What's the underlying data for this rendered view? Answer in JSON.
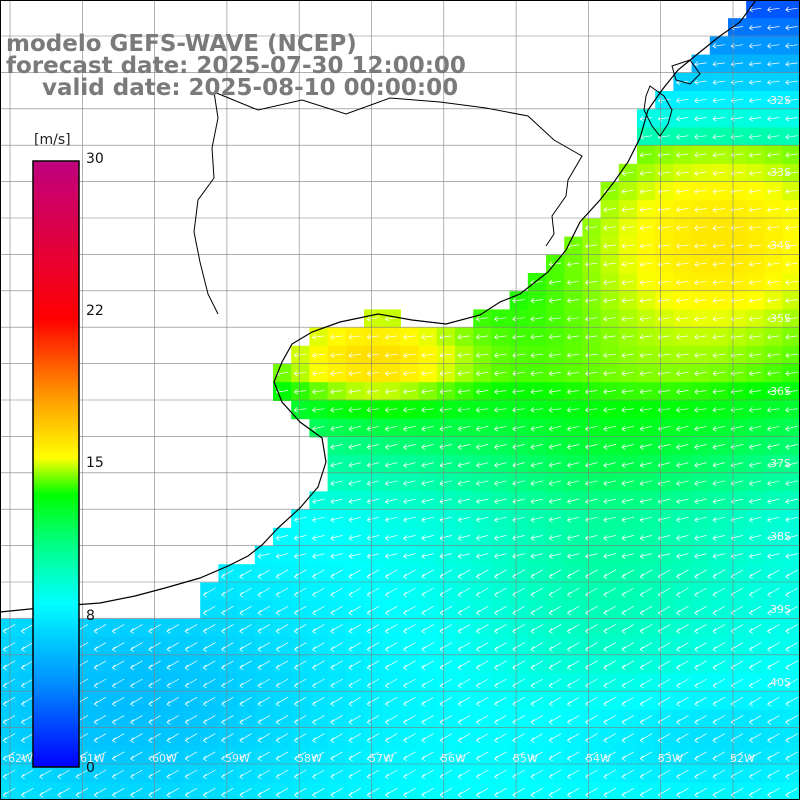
{
  "header": {
    "model": "modelo GEFS-WAVE (NCEP)",
    "forecast": "forecast date: 2025-07-30 12:00:00",
    "valid": "valid date: 2025-08-10 00:00:00"
  },
  "colorbar": {
    "units": "[m/s]",
    "min": 0,
    "max": 30,
    "ticks": [
      "30",
      "22",
      "15",
      "8",
      "0"
    ]
  },
  "lat_labels": [
    "32S",
    "33S",
    "34S",
    "35S",
    "36S",
    "37S",
    "38S",
    "39S",
    "40S"
  ],
  "lon_labels": [
    "62W",
    "61W",
    "60W",
    "59W",
    "58W",
    "57W",
    "56W",
    "55W",
    "54W",
    "53W",
    "52W"
  ],
  "colors": {
    "land": "#ffffff",
    "grid": "#7f7f7f",
    "coast": "#000000",
    "header_text": "#7a7a7a",
    "arrow": "#ffffff"
  },
  "wind": {
    "variable": "wind speed",
    "direction": "arrows pointing west / southwest"
  }
}
